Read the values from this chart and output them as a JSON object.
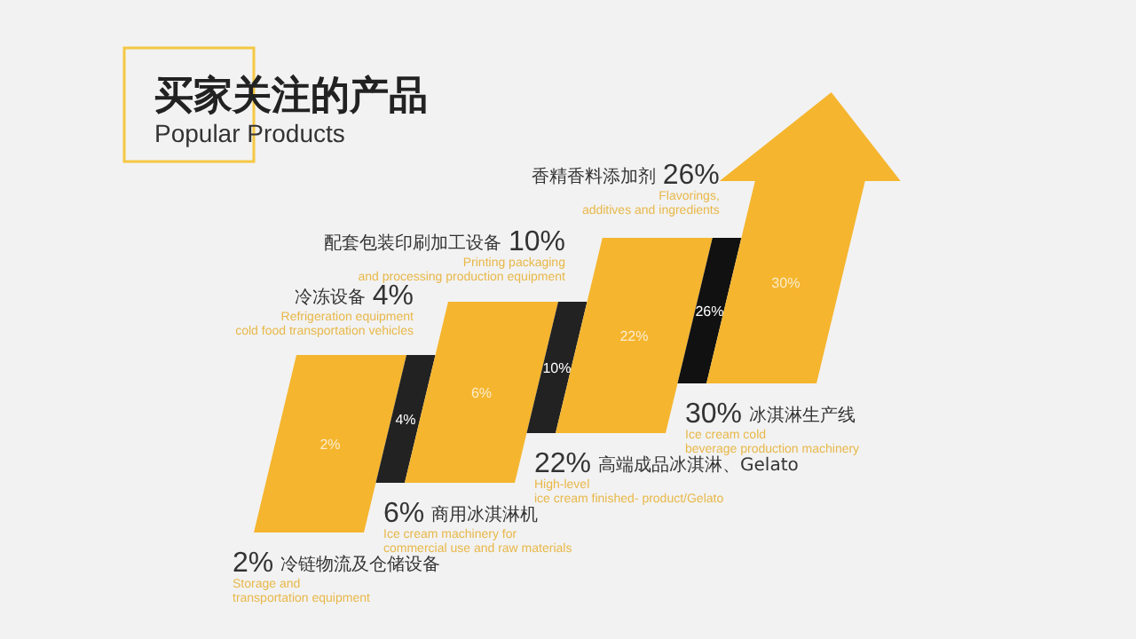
{
  "chart_data": {
    "type": "other",
    "title": "买家关注的产品",
    "subtitle": "Popular Products",
    "categories": [
      "冷链物流及仓储设备",
      "冷冻设备",
      "商用冰淇淋机",
      "配套包装印刷加工设备",
      "高端成品冰淇淋、Gelato",
      "香精香料添加剂",
      "冰淇淋生产线"
    ],
    "values": [
      2,
      4,
      6,
      10,
      22,
      26,
      30
    ],
    "value_labels": [
      "2%",
      "4%",
      "6%",
      "10%",
      "22%",
      "26%",
      "30%"
    ],
    "colors": [
      "#f5b52e",
      "#222222",
      "#f5b52e",
      "#222222",
      "#f5b52e",
      "#111111",
      "#f5b52e"
    ],
    "annotations": [
      "Storage and\ntransportation equipment",
      "Refrigeration equipment\ncold food transportation vehicles",
      "Ice cream machinery for\ncommercial use and raw materials",
      "Printing packaging\nand processing production equipment",
      "High-level\nice cream finished- product/Gelato",
      "Flavorings,\nadditives and ingredients",
      "Ice cream cold\nbeverage production machinery"
    ]
  }
}
